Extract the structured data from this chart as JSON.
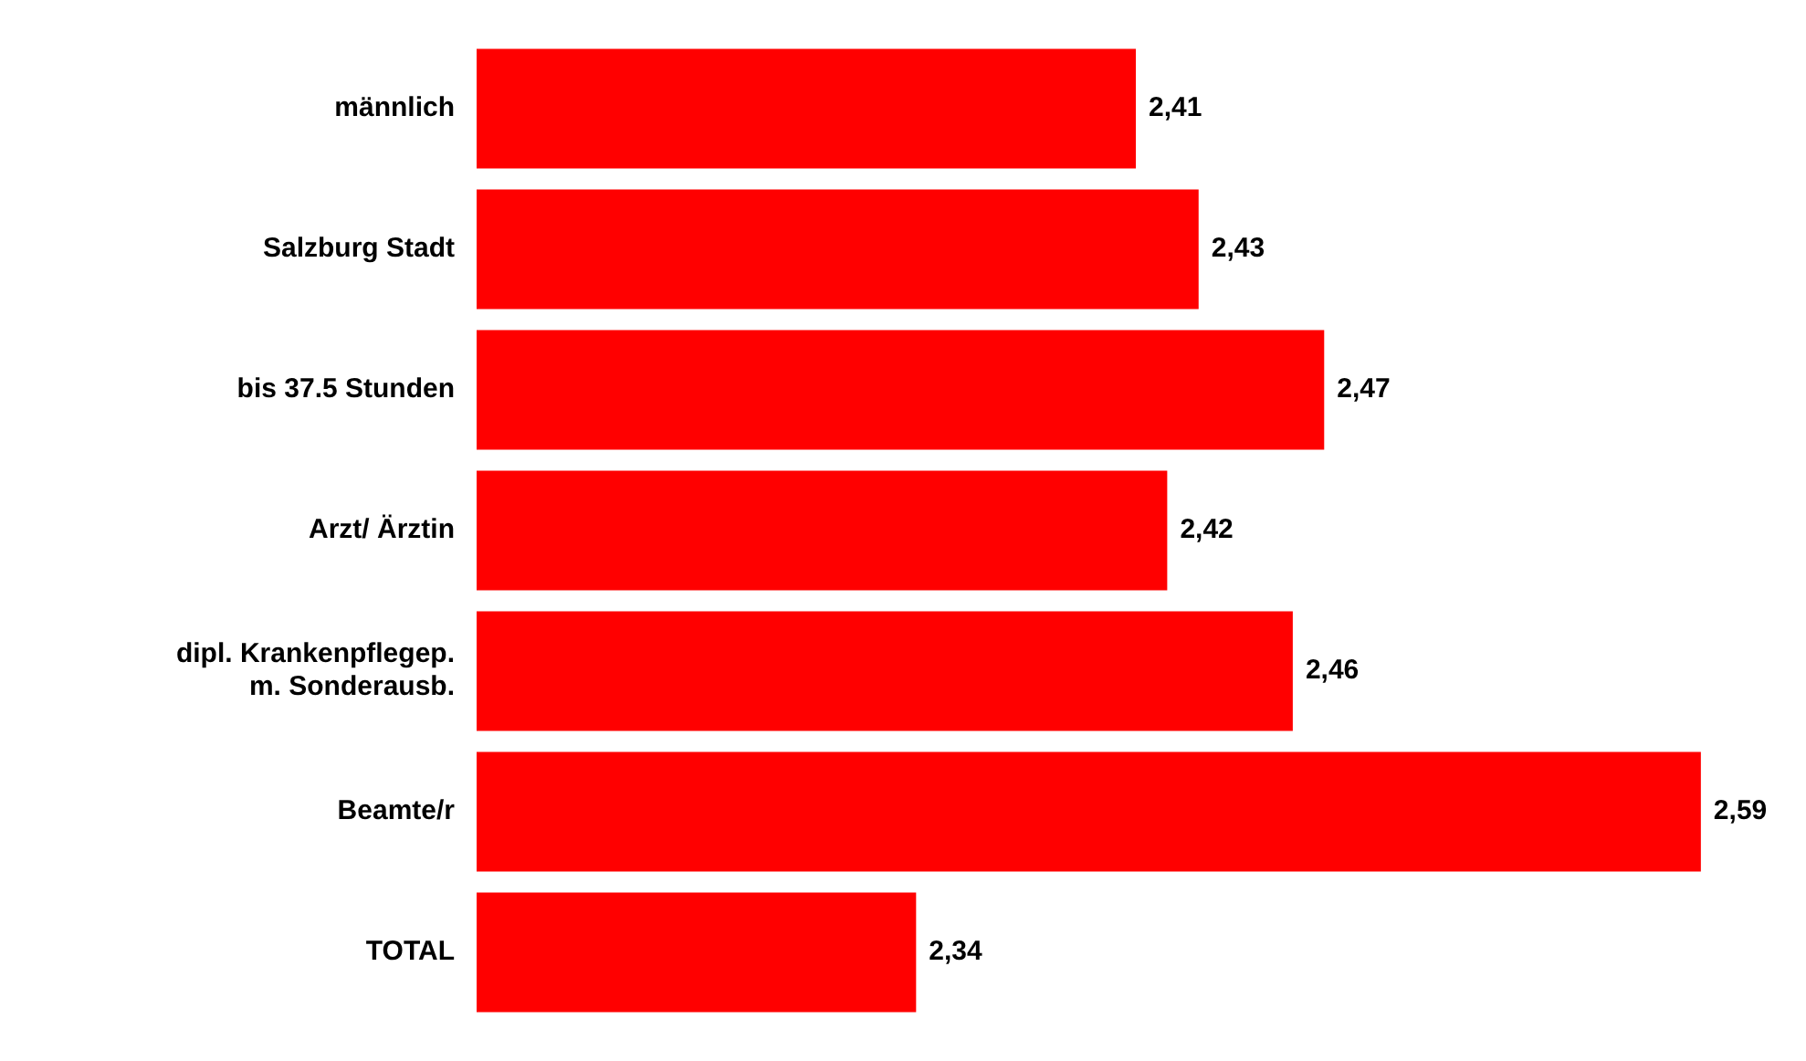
{
  "chart_data": {
    "type": "bar",
    "orientation": "horizontal",
    "categories": [
      "männlich",
      "Salzburg Stadt",
      "bis 37.5 Stunden",
      "Arzt/ Ärztin",
      "dipl. Krankenpflegep. m. Sonderausb.",
      "Beamte/r",
      "TOTAL"
    ],
    "values": [
      2.41,
      2.43,
      2.47,
      2.42,
      2.46,
      2.59,
      2.34
    ],
    "value_labels": [
      "2,41",
      "2,43",
      "2,47",
      "2,42",
      "2,46",
      "2,59",
      "2,34"
    ],
    "color": "#ff0000",
    "tick_labels": "y",
    "grid": false,
    "legend": false
  }
}
